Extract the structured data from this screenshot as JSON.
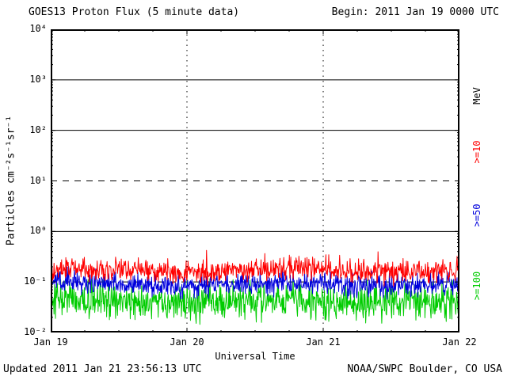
{
  "header": {
    "title": "GOES13 Proton Flux (5 minute data)",
    "begin_label": "Begin: 2011 Jan 19 0000 UTC"
  },
  "footer": {
    "updated": "Updated 2011 Jan 21 23:56:13 UTC",
    "source": "NOAA/SWPC Boulder, CO USA"
  },
  "axes": {
    "ylabel": "Particles cm⁻²s⁻¹sr⁻¹",
    "xlabel": "Universal Time",
    "y_tick_labels": [
      "10⁴",
      "10³",
      "10²",
      "10¹",
      "10⁰",
      "10⁻¹",
      "10⁻²"
    ],
    "x_tick_labels": [
      "Jan 19",
      "Jan 20",
      "Jan 21",
      "Jan 22"
    ]
  },
  "right_labels": {
    "units": "MeV",
    "units_color": "#000000",
    "series": [
      {
        "label": ">=10",
        "color": "#ff0000"
      },
      {
        "label": ">=50",
        "color": "#0000dd"
      },
      {
        "label": ">=100",
        "color": "#00cc00"
      }
    ]
  },
  "chart_data": {
    "type": "line",
    "title": "GOES13 Proton Flux (5 minute data)",
    "xlabel": "Universal Time",
    "ylabel": "Particles cm^-2 s^-1 sr^-1",
    "x_start": "2011 Jan 19 0000 UTC",
    "x_end": "2011 Jan 22 0000 UTC",
    "x_ticks": [
      "Jan 19",
      "Jan 20",
      "Jan 21",
      "Jan 22"
    ],
    "y_scale": "log10",
    "ylim": [
      0.01,
      10000
    ],
    "grid": {
      "solid_y_flux": [
        1,
        100,
        1000
      ],
      "dashed_y_flux": [
        0.1,
        10
      ],
      "dotted_vertical_day_boundaries": [
        1,
        2
      ]
    },
    "cadence_minutes": 5,
    "points_per_series": 864,
    "series": [
      {
        "name": ">=10 MeV",
        "color": "#ff0000",
        "median_flux": 0.17,
        "log10_base": -0.77,
        "log10_noise_sd": 0.11,
        "spike_prob": 0.02,
        "spike_log10": 0.28,
        "seed": 101
      },
      {
        "name": ">=50 MeV",
        "color": "#0000dd",
        "median_flux": 0.09,
        "log10_base": -1.04,
        "log10_noise_sd": 0.11,
        "spike_prob": 0.015,
        "spike_log10": 0.22,
        "seed": 202
      },
      {
        "name": ">=100 MeV",
        "color": "#00cc00",
        "median_flux": 0.045,
        "log10_base": -1.38,
        "log10_noise_sd": 0.17,
        "spike_prob": 0.02,
        "spike_log10": 0.28,
        "seed": 303
      }
    ]
  }
}
